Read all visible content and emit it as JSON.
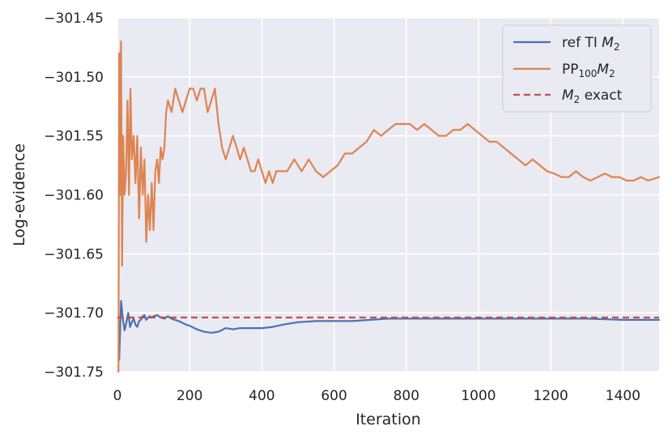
{
  "chart_data": {
    "type": "line",
    "xlabel": "Iteration",
    "ylabel": "Log-evidence",
    "xlim": [
      0,
      1500
    ],
    "ylim": [
      -301.75,
      -301.45
    ],
    "xticks": [
      0,
      200,
      400,
      600,
      800,
      1000,
      1200,
      1400
    ],
    "xtick_labels": [
      "0",
      "200",
      "400",
      "600",
      "800",
      "1000",
      "1200",
      "1400"
    ],
    "yticks": [
      -301.75,
      -301.7,
      -301.65,
      -301.6,
      -301.55,
      -301.5,
      -301.45
    ],
    "ytick_labels": [
      "−301.75",
      "−301.70",
      "−301.65",
      "−301.60",
      "−301.55",
      "−301.50",
      "−301.45"
    ],
    "grid": true,
    "background": "#eaeaf2",
    "legend_position": "top-right",
    "series": [
      {
        "name": "ref TI M2",
        "label_main": "ref TI ",
        "label_math": "M",
        "label_sub": "2",
        "label_tail": "",
        "color": "#4c72b0",
        "style": "solid",
        "x": [
          5,
          10,
          15,
          20,
          25,
          30,
          35,
          40,
          45,
          50,
          55,
          60,
          65,
          70,
          75,
          80,
          85,
          90,
          95,
          100,
          110,
          120,
          130,
          140,
          150,
          170,
          190,
          200,
          220,
          240,
          260,
          280,
          300,
          320,
          340,
          360,
          380,
          400,
          430,
          460,
          500,
          550,
          600,
          650,
          700,
          750,
          800,
          850,
          900,
          1000,
          1100,
          1200,
          1300,
          1400,
          1500
        ],
        "y": [
          -301.74,
          -301.69,
          -301.705,
          -301.715,
          -301.708,
          -301.7,
          -301.712,
          -301.708,
          -301.705,
          -301.71,
          -301.712,
          -301.707,
          -301.706,
          -301.703,
          -301.702,
          -301.706,
          -301.704,
          -301.703,
          -301.704,
          -301.703,
          -301.702,
          -301.704,
          -301.705,
          -301.703,
          -301.705,
          -301.707,
          -301.71,
          -301.711,
          -301.714,
          -301.716,
          -301.717,
          -301.716,
          -301.713,
          -301.714,
          -301.713,
          -301.713,
          -301.713,
          -301.713,
          -301.712,
          -301.71,
          -301.708,
          -301.707,
          -301.707,
          -301.707,
          -301.706,
          -301.705,
          -301.705,
          -301.705,
          -301.705,
          -301.705,
          -301.705,
          -301.705,
          -301.705,
          -301.706,
          -301.706
        ]
      },
      {
        "name": "PP100 M2",
        "label_main": "PP",
        "label_sub_pp": "100",
        "label_math": "M",
        "label_sub": "2",
        "label_tail": "",
        "color": "#dd8452",
        "style": "solid",
        "x": [
          3,
          5,
          7,
          10,
          13,
          16,
          20,
          24,
          28,
          32,
          36,
          40,
          45,
          50,
          55,
          60,
          65,
          70,
          75,
          80,
          85,
          90,
          95,
          100,
          105,
          110,
          115,
          120,
          125,
          130,
          135,
          140,
          150,
          160,
          170,
          180,
          190,
          200,
          210,
          220,
          230,
          240,
          250,
          260,
          270,
          280,
          290,
          300,
          310,
          320,
          330,
          340,
          350,
          360,
          370,
          380,
          390,
          400,
          410,
          420,
          430,
          440,
          450,
          470,
          490,
          510,
          530,
          550,
          570,
          590,
          610,
          630,
          650,
          670,
          690,
          710,
          730,
          750,
          770,
          790,
          810,
          830,
          850,
          870,
          890,
          910,
          930,
          950,
          970,
          990,
          1010,
          1030,
          1050,
          1070,
          1090,
          1110,
          1130,
          1150,
          1170,
          1190,
          1210,
          1230,
          1250,
          1270,
          1290,
          1310,
          1330,
          1350,
          1370,
          1390,
          1410,
          1430,
          1450,
          1470,
          1490,
          1500
        ],
        "y": [
          -301.75,
          -301.48,
          -301.6,
          -301.47,
          -301.66,
          -301.55,
          -301.6,
          -301.58,
          -301.52,
          -301.6,
          -301.51,
          -301.57,
          -301.55,
          -301.59,
          -301.55,
          -301.62,
          -301.56,
          -301.6,
          -301.57,
          -301.64,
          -301.6,
          -301.63,
          -301.59,
          -301.63,
          -301.58,
          -301.57,
          -301.59,
          -301.56,
          -301.57,
          -301.56,
          -301.53,
          -301.52,
          -301.53,
          -301.51,
          -301.52,
          -301.53,
          -301.52,
          -301.51,
          -301.51,
          -301.52,
          -301.51,
          -301.51,
          -301.53,
          -301.52,
          -301.51,
          -301.54,
          -301.56,
          -301.57,
          -301.56,
          -301.55,
          -301.56,
          -301.57,
          -301.56,
          -301.57,
          -301.58,
          -301.58,
          -301.57,
          -301.58,
          -301.59,
          -301.58,
          -301.59,
          -301.58,
          -301.58,
          -301.58,
          -301.57,
          -301.58,
          -301.57,
          -301.58,
          -301.585,
          -301.58,
          -301.575,
          -301.565,
          -301.565,
          -301.56,
          -301.555,
          -301.545,
          -301.55,
          -301.545,
          -301.54,
          -301.54,
          -301.54,
          -301.545,
          -301.54,
          -301.545,
          -301.55,
          -301.55,
          -301.545,
          -301.545,
          -301.54,
          -301.545,
          -301.55,
          -301.555,
          -301.555,
          -301.56,
          -301.565,
          -301.57,
          -301.575,
          -301.57,
          -301.575,
          -301.58,
          -301.582,
          -301.585,
          -301.585,
          -301.58,
          -301.585,
          -301.588,
          -301.585,
          -301.582,
          -301.585,
          -301.585,
          -301.588,
          -301.588,
          -301.585,
          -301.588,
          -301.586,
          -301.585
        ]
      },
      {
        "name": "M2 exact",
        "label_main": "",
        "label_math": "M",
        "label_sub": "2",
        "label_tail": " exact",
        "color": "#c44e52",
        "style": "dashed",
        "x": [
          0,
          1500
        ],
        "y": [
          -301.704,
          -301.704
        ]
      }
    ]
  }
}
